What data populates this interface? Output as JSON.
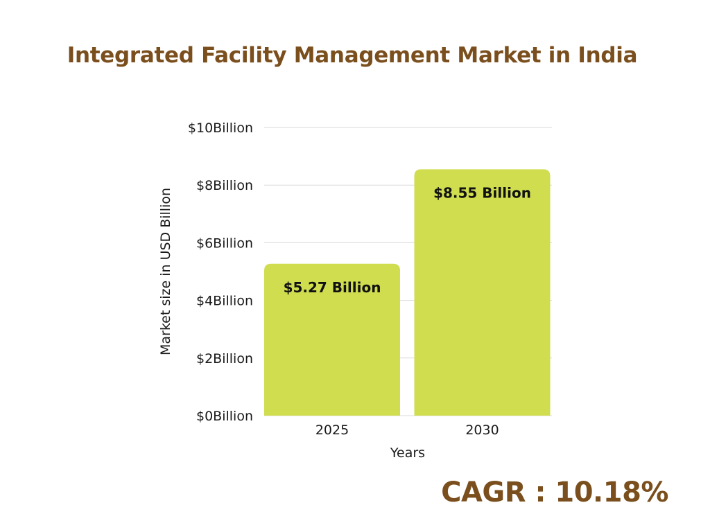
{
  "title": "Integrated Facility Management Market in India",
  "cagr": "CAGR : 10.18%",
  "colors": {
    "title": "#7a4f1d",
    "bar": "#cfdd4f",
    "grid": "#d9d9d9",
    "text": "#1a1a1a"
  },
  "chart_data": {
    "type": "bar",
    "title": "Integrated Facility Management Market in India",
    "categories": [
      "2025",
      "2030"
    ],
    "values": [
      5.27,
      8.55
    ],
    "data_labels": [
      "$5.27 Billion",
      "$8.55 Billion"
    ],
    "xlabel": "Years",
    "ylabel": "Market size in USD Billion",
    "ylim": [
      0,
      10
    ],
    "yticks": [
      0,
      2,
      4,
      6,
      8,
      10
    ],
    "ytick_labels": [
      "$0Billion",
      "$2Billion",
      "$4Billion",
      "$6Billion",
      "$8Billion",
      "$10Billion"
    ],
    "grid": true
  }
}
